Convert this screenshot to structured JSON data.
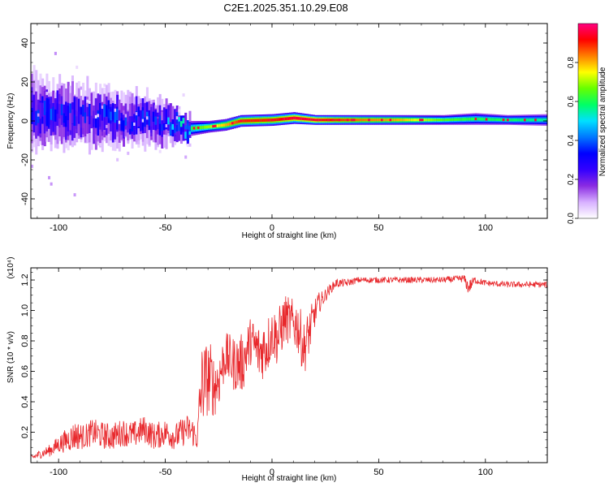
{
  "title": "C2E1.2025.351.10.29.E08",
  "colors": {
    "snr_line": "#e8282c",
    "axis": "#000000",
    "background": "#ffffff"
  },
  "chart_data": [
    {
      "type": "heatmap",
      "name": "spectrogram",
      "xlabel": "Height of straight line (km)",
      "ylabel": "Frequency (Hz)",
      "xlim": [
        -113,
        129
      ],
      "ylim": [
        -50,
        50
      ],
      "xticks": [
        -100,
        -50,
        0,
        50,
        100
      ],
      "yticks": [
        -40,
        -20,
        0,
        20,
        40
      ],
      "xtick_labels": [
        "-100",
        "-50",
        "0",
        "50",
        "100"
      ],
      "ytick_labels": [
        "-40",
        "-20",
        "0",
        "20",
        "40"
      ],
      "colorbar": {
        "label": "Normalized spectral amplitude",
        "range": [
          0,
          1
        ],
        "ticks": [
          0.0,
          0.2,
          0.4,
          0.6,
          0.8
        ],
        "tick_labels": [
          "0.0",
          "0.2",
          "0.4",
          "0.6",
          "0.8"
        ],
        "colormap": [
          "#ffffff",
          "#d7b0ff",
          "#8a2be2",
          "#3300ff",
          "#0000ff",
          "#0077ff",
          "#00e0ff",
          "#00ff66",
          "#66ff00",
          "#ffff00",
          "#ff8000",
          "#ff0000",
          "#ff0080"
        ]
      },
      "signal_trace": [
        {
          "x": -113,
          "freq": 5,
          "width": 14,
          "amp": 0.35
        },
        {
          "x": -100,
          "freq": 3,
          "width": 12,
          "amp": 0.35
        },
        {
          "x": -85,
          "freq": 2,
          "width": 11,
          "amp": 0.33
        },
        {
          "x": -70,
          "freq": 1,
          "width": 10,
          "amp": 0.35
        },
        {
          "x": -55,
          "freq": 0,
          "width": 9,
          "amp": 0.35
        },
        {
          "x": -45,
          "freq": -2,
          "width": 6,
          "amp": 0.45
        },
        {
          "x": -40,
          "freq": -4,
          "width": 4,
          "amp": 0.6
        },
        {
          "x": -30,
          "freq": -3,
          "width": 3,
          "amp": 0.7
        },
        {
          "x": -22,
          "freq": -2,
          "width": 3,
          "amp": 0.8
        },
        {
          "x": -15,
          "freq": 0,
          "width": 3,
          "amp": 0.9
        },
        {
          "x": 0,
          "freq": 0.5,
          "width": 3,
          "amp": 0.9
        },
        {
          "x": 10,
          "freq": 1.5,
          "width": 3,
          "amp": 0.95
        },
        {
          "x": 20,
          "freq": 0.5,
          "width": 2.5,
          "amp": 0.95
        },
        {
          "x": 40,
          "freq": 0.5,
          "width": 2.5,
          "amp": 0.85
        },
        {
          "x": 60,
          "freq": 0.5,
          "width": 2.5,
          "amp": 0.8
        },
        {
          "x": 80,
          "freq": 0.5,
          "width": 2.5,
          "amp": 0.65
        },
        {
          "x": 95,
          "freq": 1,
          "width": 3,
          "amp": 0.6
        },
        {
          "x": 110,
          "freq": 0.5,
          "width": 2.5,
          "amp": 0.6
        },
        {
          "x": 129,
          "freq": 0.5,
          "width": 3,
          "amp": 0.55
        }
      ]
    },
    {
      "type": "line",
      "name": "snr",
      "xlabel": "Height of straight line (km)",
      "ylabel": "SNR (10 * v/v)",
      "y_multiplier": "(x10⁴)",
      "xlim": [
        -113,
        129
      ],
      "ylim": [
        0,
        1.28
      ],
      "xticks": [
        -100,
        -50,
        0,
        50,
        100
      ],
      "yticks": [
        0.2,
        0.4,
        0.6,
        0.8,
        1.0,
        1.2
      ],
      "xtick_labels": [
        "-100",
        "-50",
        "0",
        "50",
        "100"
      ],
      "ytick_labels": [
        "0.2",
        "0.4",
        "0.6",
        "0.8",
        "1.0",
        "1.2"
      ],
      "series": [
        {
          "name": "SNR",
          "x": [
            -113,
            -108,
            -104,
            -100,
            -96,
            -92,
            -88,
            -84,
            -80,
            -75,
            -70,
            -65,
            -60,
            -55,
            -50,
            -45,
            -40,
            -37,
            -35,
            -34,
            -33,
            -31,
            -29,
            -27,
            -25,
            -22,
            -18,
            -14,
            -10,
            -6,
            -2,
            0,
            3,
            6,
            9,
            12,
            15,
            18,
            20,
            22,
            24,
            26,
            28,
            30,
            35,
            40,
            50,
            60,
            70,
            80,
            90,
            92,
            95,
            100,
            110,
            120,
            129
          ],
          "y": [
            0.03,
            0.06,
            0.08,
            0.12,
            0.15,
            0.18,
            0.17,
            0.2,
            0.18,
            0.17,
            0.2,
            0.18,
            0.22,
            0.17,
            0.2,
            0.17,
            0.22,
            0.2,
            0.15,
            0.35,
            0.5,
            0.55,
            0.55,
            0.5,
            0.55,
            0.7,
            0.65,
            0.65,
            0.8,
            0.72,
            0.78,
            0.85,
            0.82,
            0.95,
            0.92,
            0.9,
            0.75,
            0.88,
            0.98,
            1.05,
            1.08,
            1.12,
            1.15,
            1.18,
            1.18,
            1.2,
            1.2,
            1.2,
            1.2,
            1.2,
            1.21,
            1.15,
            1.2,
            1.18,
            1.17,
            1.17,
            1.17
          ],
          "noise": [
            0.02,
            0.03,
            0.04,
            0.06,
            0.08,
            0.1,
            0.08,
            0.09,
            0.09,
            0.09,
            0.09,
            0.09,
            0.09,
            0.09,
            0.09,
            0.09,
            0.1,
            0.1,
            0.07,
            0.2,
            0.28,
            0.25,
            0.25,
            0.2,
            0.2,
            0.16,
            0.18,
            0.2,
            0.16,
            0.2,
            0.2,
            0.16,
            0.2,
            0.16,
            0.16,
            0.18,
            0.18,
            0.15,
            0.1,
            0.07,
            0.05,
            0.04,
            0.03,
            0.03,
            0.025,
            0.02,
            0.02,
            0.02,
            0.02,
            0.02,
            0.025,
            0.05,
            0.025,
            0.02,
            0.02,
            0.02,
            0.02
          ]
        }
      ]
    }
  ]
}
